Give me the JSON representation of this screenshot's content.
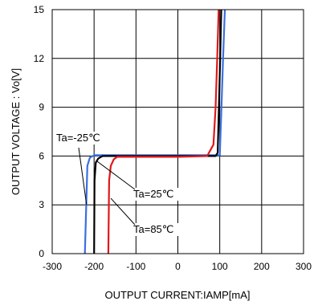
{
  "chart_data": {
    "type": "line",
    "xlabel": "OUTPUT CURRENT:IAMP[mA]",
    "ylabel": "OUTPUT VOLTAGE : Vo[V]",
    "xlim": [
      -300,
      300
    ],
    "ylim": [
      0,
      15
    ],
    "xticks": [
      -300,
      -200,
      -100,
      0,
      100,
      200,
      300
    ],
    "yticks": [
      0,
      3,
      6,
      9,
      12,
      15
    ],
    "grid": true,
    "series": [
      {
        "name": "Ta=-25℃",
        "color": "#3a6fe0",
        "x": [
          -222,
          -216,
          -210,
          -200,
          -100,
          0,
          90,
          98,
          100,
          104,
          108,
          113
        ],
        "y": [
          0,
          5.4,
          5.9,
          6.05,
          6.05,
          6.05,
          6.05,
          6.05,
          6.05,
          9,
          12,
          15.5
        ]
      },
      {
        "name": "Ta=25℃",
        "color": "#000000",
        "x": [
          -200,
          -199,
          -196,
          -190,
          -180,
          -100,
          0,
          90,
          95,
          98,
          101,
          104
        ],
        "y": [
          0,
          4.5,
          5.6,
          5.85,
          6.0,
          6.0,
          6.0,
          6.0,
          6.2,
          9,
          12,
          15.5
        ]
      },
      {
        "name": "Ta=85℃",
        "color": "#e01818",
        "x": [
          -166,
          -164,
          -160,
          -153,
          -145,
          -100,
          0,
          70,
          85,
          90,
          94,
          98
        ],
        "y": [
          0,
          4.5,
          5.4,
          5.8,
          5.95,
          5.95,
          5.95,
          6.0,
          6.7,
          9,
          12,
          15.5
        ]
      }
    ],
    "annotations": [
      {
        "text": "Ta=-25℃",
        "series": 0,
        "target": [
          -218,
          3.0
        ]
      },
      {
        "text": "Ta=25℃",
        "series": 1,
        "target": [
          -194,
          5.7
        ]
      },
      {
        "text": "Ta=85℃",
        "series": 2,
        "target": [
          -160,
          3.4
        ]
      }
    ]
  }
}
